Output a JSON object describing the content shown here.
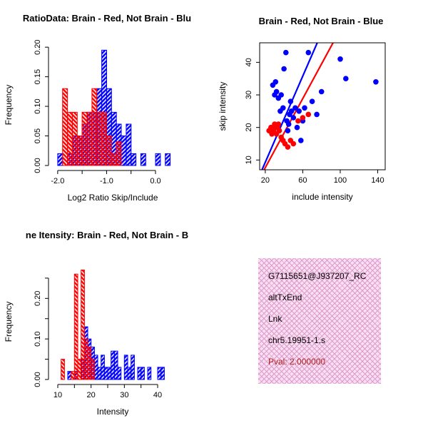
{
  "colors": {
    "red": "#FF0000",
    "blue": "#0000FF",
    "axis": "#000000",
    "info_box_bg": "#F9DFF0",
    "info_box_hatch": "#DD9ACF",
    "pval_text": "#B22222"
  },
  "chart_data": [
    {
      "id": "log2ratio-histogram",
      "type": "histogram",
      "title": "RatioData: Brain - Red, Not Brain - Blu",
      "xlabel": "Log2 Ratio Skip/Include",
      "ylabel": "Frequency",
      "xlim": [
        -2.1,
        0.35
      ],
      "ylim": [
        0,
        0.205
      ],
      "xticks": [
        {
          "v": -2.0,
          "l": "-2.0"
        },
        {
          "v": -1.5,
          "l": ""
        },
        {
          "v": -1.0,
          "l": "-1.0"
        },
        {
          "v": -0.5,
          "l": ""
        },
        {
          "v": 0.0,
          "l": "0.0"
        }
      ],
      "yticks": [
        {
          "v": 0.0,
          "l": "0.00"
        },
        {
          "v": 0.05,
          "l": "0.05"
        },
        {
          "v": 0.1,
          "l": "0.10"
        },
        {
          "v": 0.15,
          "l": "0.15"
        },
        {
          "v": 0.2,
          "l": "0.20"
        }
      ],
      "bin_start": -2.0,
      "bin_width": 0.1,
      "series": [
        {
          "name": "not-brain-blue",
          "color": "#0000FF",
          "values": [
            0.02,
            0,
            0.02,
            0.05,
            0.05,
            0.07,
            0.09,
            0.09,
            0.13,
            0.195,
            0.13,
            0.09,
            0.07,
            0.05,
            0.07,
            0.02,
            0,
            0.02,
            0,
            0,
            0.02,
            0,
            0.02
          ]
        },
        {
          "name": "brain-red",
          "color": "#FF0000",
          "values": [
            0,
            0.13,
            0.09,
            0.09,
            0.05,
            0.09,
            0.09,
            0.13,
            0.09,
            0.09,
            0.05,
            0.02,
            0.04,
            0,
            0,
            0,
            0,
            0,
            0,
            0,
            0,
            0,
            0
          ]
        }
      ]
    },
    {
      "id": "intensity-scatter",
      "type": "scatter",
      "title": "Brain - Red, Not Brain - Blue",
      "xlabel": "include intensity",
      "ylabel": "skip intensity",
      "xlim": [
        14,
        148
      ],
      "ylim": [
        7,
        46
      ],
      "xticks": [
        {
          "v": 20,
          "l": "20"
        },
        {
          "v": 60,
          "l": "60"
        },
        {
          "v": 100,
          "l": "100"
        },
        {
          "v": 140,
          "l": "140"
        }
      ],
      "yticks": [
        {
          "v": 10,
          "l": "10"
        },
        {
          "v": 20,
          "l": "20"
        },
        {
          "v": 30,
          "l": "30"
        },
        {
          "v": 40,
          "l": "40"
        }
      ],
      "series": [
        {
          "name": "not-brain-blue",
          "color": "#0000FF",
          "points": [
            [
              28,
              33
            ],
            [
              30,
              30
            ],
            [
              31,
              34
            ],
            [
              32,
              31
            ],
            [
              34,
              29
            ],
            [
              36,
              25
            ],
            [
              37,
              30
            ],
            [
              39,
              26
            ],
            [
              40,
              38
            ],
            [
              42,
              43
            ],
            [
              43,
              22
            ],
            [
              44,
              19
            ],
            [
              45,
              21
            ],
            [
              46,
              24
            ],
            [
              47,
              28
            ],
            [
              48,
              25
            ],
            [
              50,
              23
            ],
            [
              52,
              26
            ],
            [
              54,
              20
            ],
            [
              56,
              25
            ],
            [
              58,
              16
            ],
            [
              60,
              22
            ],
            [
              62,
              26
            ],
            [
              66,
              43
            ],
            [
              70,
              28
            ],
            [
              75,
              24
            ],
            [
              80,
              31
            ],
            [
              100,
              41
            ],
            [
              106,
              35
            ],
            [
              138,
              34
            ]
          ]
        },
        {
          "name": "brain-red",
          "color": "#FF0000",
          "points": [
            [
              24,
              19
            ],
            [
              26,
              20
            ],
            [
              27,
              18
            ],
            [
              29,
              19
            ],
            [
              30,
              21
            ],
            [
              31,
              20
            ],
            [
              32,
              18
            ],
            [
              33,
              20
            ],
            [
              34,
              21
            ],
            [
              35,
              19
            ],
            [
              37,
              17
            ],
            [
              39,
              16
            ],
            [
              41,
              15
            ],
            [
              44,
              14
            ],
            [
              47,
              16
            ],
            [
              50,
              15
            ],
            [
              55,
              22
            ],
            [
              60,
              23
            ],
            [
              66,
              24
            ]
          ]
        }
      ],
      "lines": [
        {
          "name": "not-brain-fit",
          "color": "#0000FF",
          "x": [
            15,
            80
          ],
          "y": [
            6,
            49
          ]
        },
        {
          "name": "brain-fit",
          "color": "#FF0000",
          "x": [
            15,
            98
          ],
          "y": [
            5,
            49
          ]
        }
      ]
    },
    {
      "id": "intensity-histogram",
      "type": "histogram",
      "title": "ne Itensity: Brain - Red, Not Brain - B",
      "xlabel": "Intensity",
      "ylabel": "Frequency",
      "xlim": [
        8.5,
        44.5
      ],
      "ylim": [
        0,
        0.285
      ],
      "xticks": [
        {
          "v": 10,
          "l": "10"
        },
        {
          "v": 15,
          "l": ""
        },
        {
          "v": 20,
          "l": "20"
        },
        {
          "v": 25,
          "l": ""
        },
        {
          "v": 30,
          "l": "30"
        },
        {
          "v": 35,
          "l": ""
        },
        {
          "v": 40,
          "l": "40"
        }
      ],
      "yticks": [
        {
          "v": 0.0,
          "l": "0.00"
        },
        {
          "v": 0.05,
          "l": ""
        },
        {
          "v": 0.1,
          "l": "0.10"
        },
        {
          "v": 0.15,
          "l": ""
        },
        {
          "v": 0.2,
          "l": "0.20"
        },
        {
          "v": 0.25,
          "l": ""
        }
      ],
      "bin_start": 11,
      "bin_width": 1,
      "series": [
        {
          "name": "not-brain-blue",
          "color": "#0000FF",
          "values": [
            0,
            0,
            0.02,
            0,
            0.02,
            0,
            0.05,
            0.13,
            0.1,
            0.08,
            0.06,
            0.03,
            0.06,
            0.03,
            0.03,
            0.07,
            0.07,
            0.03,
            0,
            0.06,
            0.03,
            0.06,
            0,
            0.03,
            0.03,
            0,
            0.03,
            0,
            0,
            0.03,
            0.03,
            0
          ]
        },
        {
          "name": "brain-red",
          "color": "#FF0000",
          "values": [
            0.05,
            0,
            0,
            0.02,
            0.26,
            0.05,
            0.27,
            0.1,
            0.08,
            0.05,
            0,
            0,
            0,
            0,
            0,
            0,
            0,
            0,
            0,
            0,
            0,
            0,
            0,
            0,
            0,
            0,
            0,
            0,
            0,
            0,
            0,
            0
          ]
        }
      ]
    }
  ],
  "info_box": {
    "lines": [
      "G7115651@J937207_RC",
      "altTxEnd",
      "Lnk",
      "chr5.19951-1.s"
    ],
    "pval": "Pval: 2.000000"
  }
}
